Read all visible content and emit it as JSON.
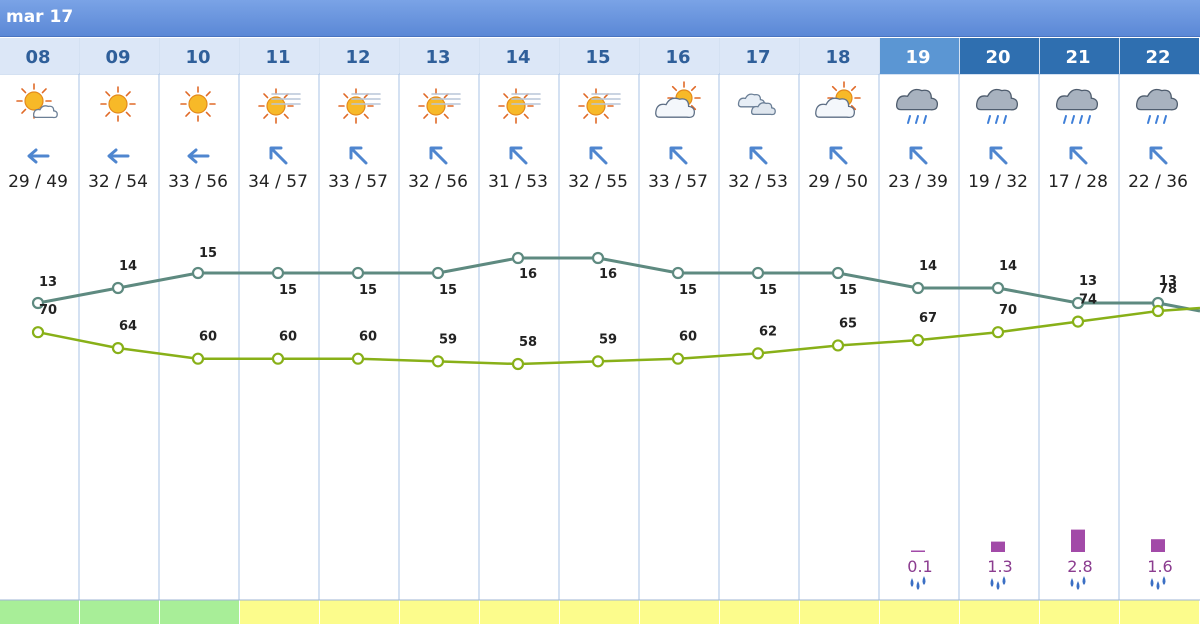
{
  "header": {
    "label": "mar 17"
  },
  "colors": {
    "upper_line": "#5e8a80",
    "lower_line": "#88b018",
    "precip_bar": "#a24aa8",
    "wind_arrow": "#4f86cf",
    "strip_green": "#a8ee98",
    "strip_yellow": "#fcfc8c",
    "grid": "#a9c3e6"
  },
  "days": [
    {
      "label": "08",
      "icon": "sun-cloud-icon",
      "wind": "wind-arrow-west-icon",
      "temp": "29 / 49",
      "strip": "green"
    },
    {
      "label": "09",
      "icon": "sun-icon",
      "wind": "wind-arrow-west-icon",
      "temp": "32 / 54",
      "strip": "green"
    },
    {
      "label": "10",
      "icon": "sun-icon",
      "wind": "wind-arrow-west-icon",
      "temp": "33 / 56",
      "strip": "green"
    },
    {
      "label": "11",
      "icon": "hazy-sun-icon",
      "wind": "wind-arrow-northwest-icon",
      "temp": "34 / 57",
      "strip": "yellow"
    },
    {
      "label": "12",
      "icon": "hazy-sun-icon",
      "wind": "wind-arrow-northwest-icon",
      "temp": "33 / 57",
      "strip": "yellow"
    },
    {
      "label": "13",
      "icon": "hazy-sun-icon",
      "wind": "wind-arrow-northwest-icon",
      "temp": "32 / 56",
      "strip": "yellow"
    },
    {
      "label": "14",
      "icon": "hazy-sun-icon",
      "wind": "wind-arrow-northwest-icon",
      "temp": "31 / 53",
      "strip": "yellow"
    },
    {
      "label": "15",
      "icon": "hazy-sun-icon",
      "wind": "wind-arrow-northwest-icon",
      "temp": "32 / 55",
      "strip": "yellow"
    },
    {
      "label": "16",
      "icon": "partly-cloudy-icon",
      "wind": "wind-arrow-northwest-icon",
      "temp": "33 / 57",
      "strip": "yellow"
    },
    {
      "label": "17",
      "icon": "cloudy-icon",
      "wind": "wind-arrow-northwest-icon",
      "temp": "32 / 53",
      "strip": "yellow"
    },
    {
      "label": "18",
      "icon": "partly-cloudy-icon",
      "wind": "wind-arrow-northwest-icon",
      "temp": "29 / 50",
      "strip": "yellow"
    },
    {
      "label": "19",
      "icon": "rain-cloud-icon",
      "wind": "wind-arrow-northwest-icon",
      "temp": "23 / 39",
      "strip": "yellow",
      "header_style": "mid"
    },
    {
      "label": "20",
      "icon": "rain-cloud-icon",
      "wind": "wind-arrow-northwest-icon",
      "temp": "19 / 32",
      "strip": "yellow",
      "header_style": "dark"
    },
    {
      "label": "21",
      "icon": "heavy-rain-cloud-icon",
      "wind": "wind-arrow-northwest-icon",
      "temp": "17 / 28",
      "strip": "yellow",
      "header_style": "dark"
    },
    {
      "label": "22",
      "icon": "rain-cloud-icon",
      "wind": "wind-arrow-northwest-icon",
      "temp": "22 / 36",
      "strip": "yellow",
      "header_style": "dark"
    }
  ],
  "chart_data": {
    "type": "line",
    "x": [
      "08",
      "09",
      "10",
      "11",
      "12",
      "13",
      "14",
      "15",
      "16",
      "17",
      "18",
      "19",
      "20",
      "21",
      "22"
    ],
    "series": [
      {
        "key": "upper",
        "values": [
          13,
          14,
          15,
          15,
          15,
          15,
          16,
          16,
          15,
          15,
          15,
          14,
          14,
          13,
          13
        ]
      },
      {
        "key": "lower",
        "values": [
          70,
          64,
          60,
          60,
          60,
          59,
          58,
          59,
          60,
          62,
          65,
          67,
          70,
          74,
          78
        ]
      }
    ],
    "precip": {
      "values": [
        null,
        null,
        null,
        null,
        null,
        null,
        null,
        null,
        null,
        null,
        null,
        0.1,
        1.3,
        2.8,
        1.6
      ],
      "labels": [
        "",
        "",
        "",
        "",
        "",
        "",
        "",
        "",
        "",
        "",
        "",
        "0.1",
        "1.3",
        "2.8",
        "1.6"
      ],
      "icon": "rain-drops-icon"
    },
    "xlabel": "",
    "ylabel": ""
  }
}
